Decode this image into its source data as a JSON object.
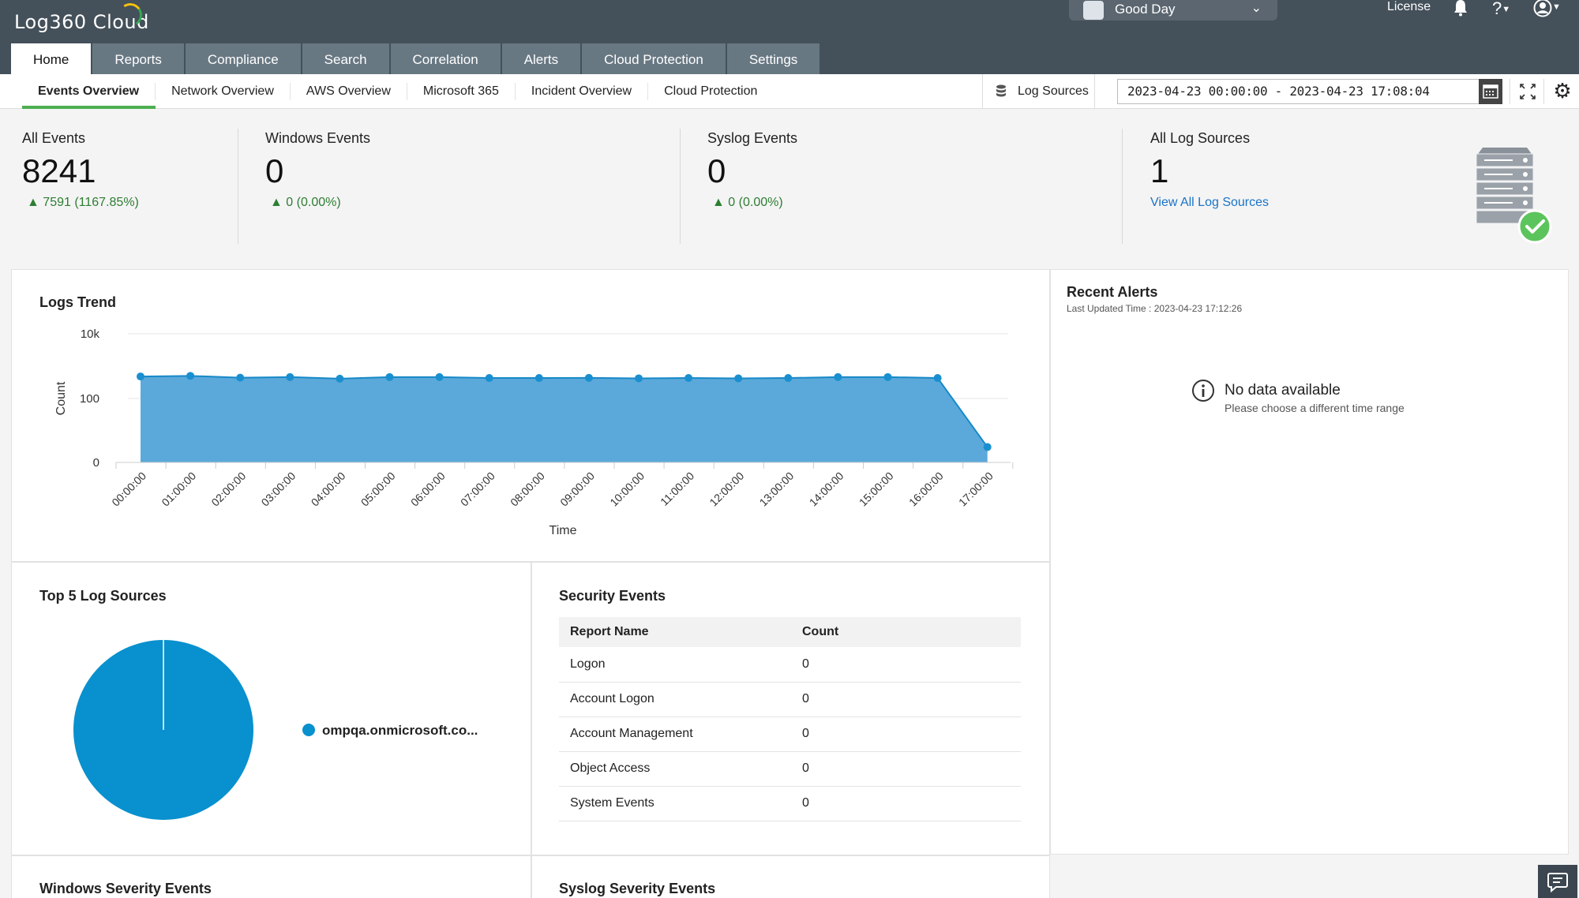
{
  "app": {
    "logo": "Log360 Cloud"
  },
  "header": {
    "org_selector": "Good Day",
    "license": "License",
    "help": "?",
    "tabs": [
      {
        "label": "Home"
      },
      {
        "label": "Reports"
      },
      {
        "label": "Compliance"
      },
      {
        "label": "Search"
      },
      {
        "label": "Correlation"
      },
      {
        "label": "Alerts"
      },
      {
        "label": "Cloud Protection"
      },
      {
        "label": "Settings"
      }
    ]
  },
  "subnav": {
    "tabs": [
      {
        "label": "Events Overview"
      },
      {
        "label": "Network Overview"
      },
      {
        "label": "AWS Overview"
      },
      {
        "label": "Microsoft 365"
      },
      {
        "label": "Incident Overview"
      },
      {
        "label": "Cloud Protection"
      }
    ],
    "log_sources": "Log Sources",
    "date_range": "2023-04-23 00:00:00 - 2023-04-23 17:08:04"
  },
  "stats": {
    "all_events": {
      "label": "All Events",
      "value": "8241",
      "delta": "7591 (1167.85%)"
    },
    "windows_events": {
      "label": "Windows Events",
      "value": "0",
      "delta": "0 (0.00%)"
    },
    "syslog_events": {
      "label": "Syslog Events",
      "value": "0",
      "delta": "0 (0.00%)"
    },
    "all_log_sources": {
      "label": "All Log Sources",
      "value": "1",
      "link": "View All Log Sources"
    }
  },
  "logs_trend": {
    "title": "Logs Trend",
    "chart_data": {
      "type": "area",
      "title": "Logs Trend",
      "xlabel": "Time",
      "ylabel": "Count",
      "yscale": "log",
      "yticks": [
        "0",
        "100",
        "10k"
      ],
      "categories": [
        "00:00:00",
        "01:00:00",
        "02:00:00",
        "03:00:00",
        "04:00:00",
        "05:00:00",
        "06:00:00",
        "07:00:00",
        "08:00:00",
        "09:00:00",
        "10:00:00",
        "11:00:00",
        "12:00:00",
        "13:00:00",
        "14:00:00",
        "15:00:00",
        "16:00:00",
        "17:00:00"
      ],
      "values": [
        480,
        500,
        440,
        460,
        410,
        460,
        460,
        430,
        430,
        435,
        420,
        430,
        420,
        430,
        460,
        460,
        430,
        24
      ],
      "color": "#1a8fd0"
    }
  },
  "recent_alerts": {
    "title": "Recent Alerts",
    "updated": "Last Updated Time : 2023-04-23 17:12:26",
    "empty_title": "No data available",
    "empty_sub": "Please choose a different time range"
  },
  "top_sources": {
    "title": "Top 5 Log Sources",
    "chart_data": {
      "type": "pie",
      "labels": [
        "ompqa.onmicrosoft.co..."
      ],
      "values": [
        100
      ],
      "colors": [
        "#0990ce"
      ]
    }
  },
  "security_events": {
    "title": "Security Events",
    "columns": [
      "Report Name",
      "Count"
    ],
    "rows": [
      {
        "name": "Logon",
        "count": "0"
      },
      {
        "name": "Account Logon",
        "count": "0"
      },
      {
        "name": "Account Management",
        "count": "0"
      },
      {
        "name": "Object Access",
        "count": "0"
      },
      {
        "name": "System Events",
        "count": "0"
      }
    ]
  },
  "bottom": {
    "windows_severity": "Windows Severity Events",
    "syslog_severity": "Syslog Severity Events"
  }
}
